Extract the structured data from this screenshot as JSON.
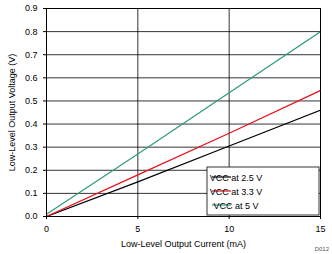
{
  "chart_data": {
    "type": "line",
    "x_label": "Low-Level Output Current (mA)",
    "y_label": "Low-Level Output Voltage (V)",
    "x": [
      0,
      5,
      10,
      15
    ],
    "series": [
      {
        "name": "VCC at 2.5 V",
        "color": "#000000",
        "values": [
          0,
          0.15,
          0.305,
          0.46
        ]
      },
      {
        "name": "VCC at 3.3 V",
        "color": "#e8101a",
        "values": [
          0,
          0.18,
          0.36,
          0.545
        ]
      },
      {
        "name": "VCC at 5 V",
        "color": "#2f9a78",
        "values": [
          0.01,
          0.27,
          0.535,
          0.8
        ]
      }
    ],
    "xlim": [
      0,
      15
    ],
    "xticks": [
      0,
      5,
      10,
      15
    ],
    "ylim": [
      0,
      0.9
    ],
    "yticks": [
      0,
      0.1,
      0.2,
      0.3,
      0.4,
      0.5,
      0.6,
      0.7,
      0.8,
      0.9
    ],
    "grid": true,
    "legend": "bottom-right",
    "annotations": [
      "D012"
    ]
  }
}
